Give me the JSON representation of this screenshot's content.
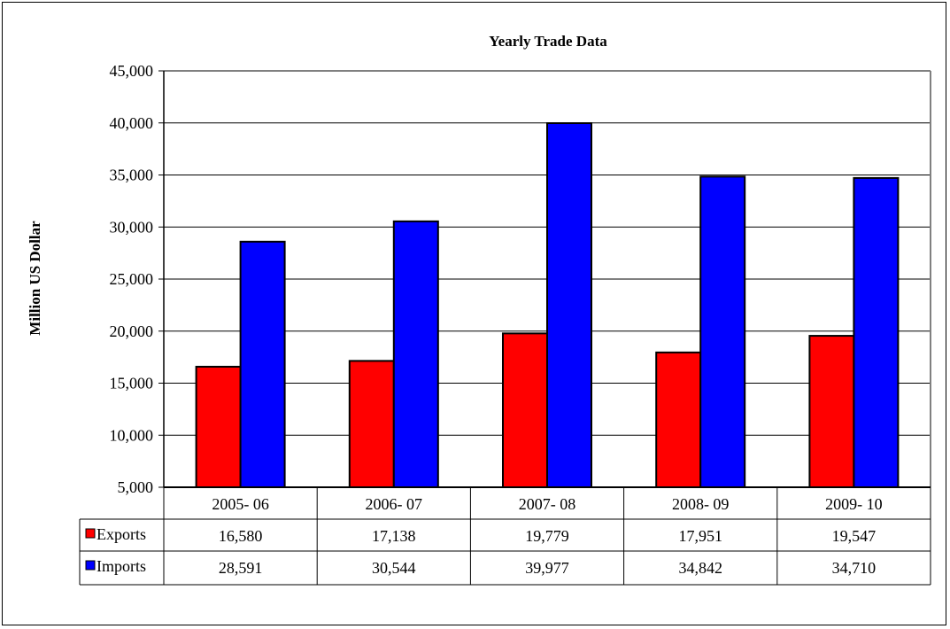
{
  "chart_data": {
    "type": "bar",
    "title": "Yearly Trade Data",
    "xlabel": "",
    "ylabel": "Million US Dollar",
    "ylim": [
      5000,
      45000
    ],
    "yticks": [
      "5,000",
      "10,000",
      "15,000",
      "20,000",
      "25,000",
      "30,000",
      "35,000",
      "40,000",
      "45,000"
    ],
    "ytick_values": [
      5000,
      10000,
      15000,
      20000,
      25000,
      30000,
      35000,
      40000,
      45000
    ],
    "grid": true,
    "legend": "data-table",
    "categories": [
      "2005- 06",
      "2006- 07",
      "2007- 08",
      "2008- 09",
      "2009- 10"
    ],
    "series": [
      {
        "name": "Exports",
        "color": "#ff0000",
        "values": [
          16580,
          17138,
          19779,
          17951,
          19547
        ],
        "labels": [
          "16,580",
          "17,138",
          "19,779",
          "17,951",
          "19,547"
        ]
      },
      {
        "name": "Imports",
        "color": "#0000ff",
        "values": [
          28591,
          30544,
          39977,
          34842,
          34710
        ],
        "labels": [
          "28,591",
          "30,544",
          "39,977",
          "34,842",
          "34,710"
        ]
      }
    ]
  }
}
